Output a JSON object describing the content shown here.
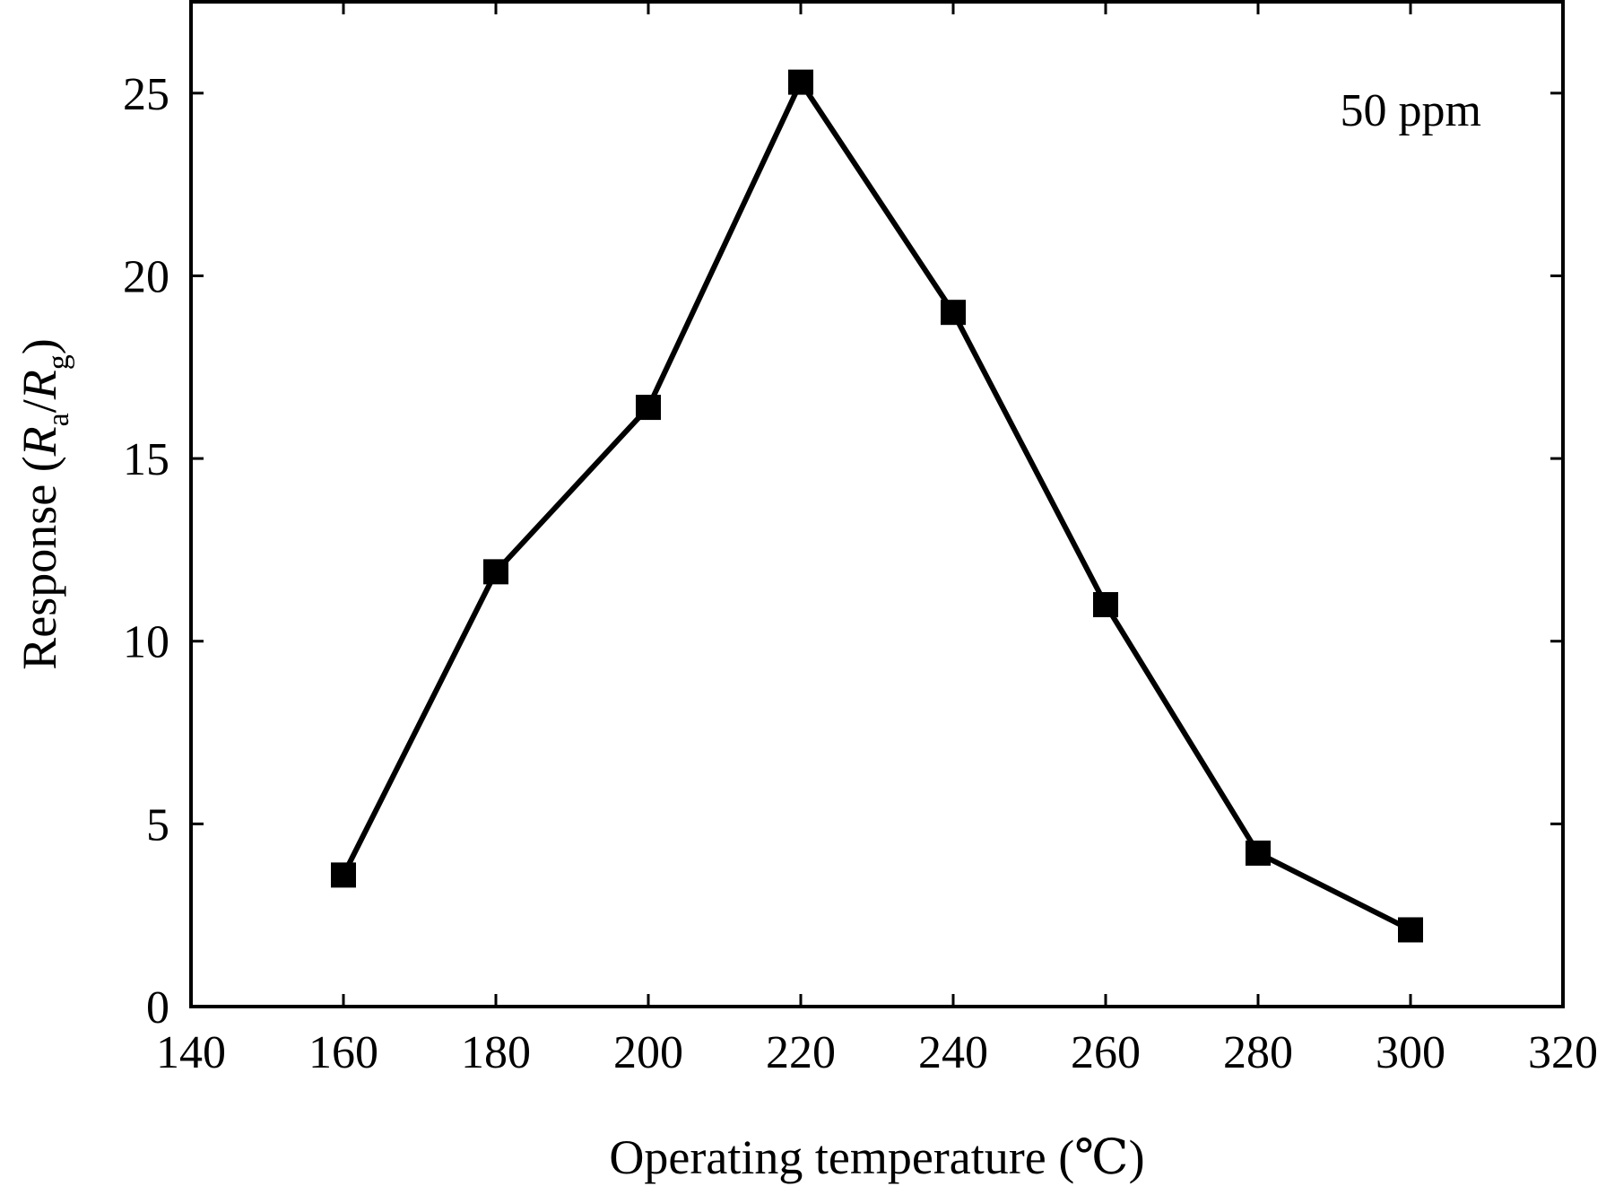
{
  "chart_data": {
    "type": "line",
    "title": "",
    "xlabel": "Operating temperature (℃)",
    "ylabel": {
      "prefix": "Response (",
      "r1": "R",
      "sub1": "a",
      "slash": "/",
      "r2": "R",
      "sub2": "g",
      "suffix": ")"
    },
    "annotation": "50 ppm",
    "xlim": [
      140,
      320
    ],
    "ylim": [
      0,
      27.5
    ],
    "xticks": [
      140,
      160,
      180,
      200,
      220,
      240,
      260,
      280,
      300,
      320
    ],
    "xtick_labels": [
      "140",
      "160",
      "180",
      "200",
      "220",
      "240",
      "260",
      "280",
      "300",
      "320"
    ],
    "yticks": [
      0,
      5,
      10,
      15,
      20,
      25
    ],
    "ytick_labels": [
      "0",
      "5",
      "10",
      "15",
      "20",
      "25"
    ],
    "grid": false,
    "legend": "none",
    "marker": "square",
    "color": "#000000",
    "series": [
      {
        "x": [
          160,
          180,
          200,
          220,
          240,
          260,
          280,
          300
        ],
        "y": [
          3.6,
          11.9,
          16.4,
          25.3,
          19.0,
          11.0,
          4.2,
          2.1
        ]
      }
    ]
  }
}
